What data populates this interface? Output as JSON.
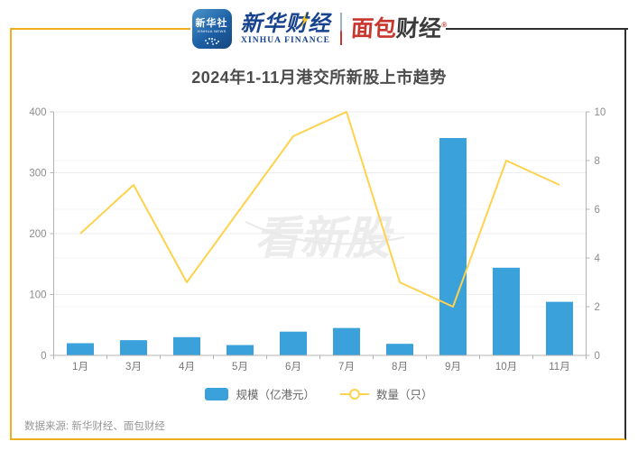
{
  "header": {
    "xinhua_news_icon": {
      "title": "新华社",
      "subtitle": "XINHUA NEWS"
    },
    "xinhua_finance": {
      "cn": "新华财经",
      "en": "XINHUA FINANCE"
    },
    "mianbao": {
      "cn_red": "面包",
      "cn_dark": "财经",
      "registered": "®"
    }
  },
  "chart_data": {
    "type": "bar+line",
    "title": "2024年1-11月港交所新股上市趋势",
    "categories": [
      "1月",
      "3月",
      "4月",
      "5月",
      "6月",
      "7月",
      "8月",
      "9月",
      "10月",
      "11月"
    ],
    "series": [
      {
        "name": "规模（亿港元）",
        "type": "bar",
        "axis": "left",
        "color": "#3aa1da",
        "values": [
          20,
          25,
          30,
          17,
          39,
          45,
          19,
          357,
          144,
          88
        ]
      },
      {
        "name": "数量（只）",
        "type": "line",
        "axis": "right",
        "color": "#ffd24d",
        "values": [
          5,
          7,
          3,
          6,
          9,
          10,
          3,
          2,
          8,
          7
        ]
      }
    ],
    "left_axis": {
      "min": 0,
      "max": 400,
      "ticks": [
        0,
        100,
        200,
        300,
        400
      ]
    },
    "right_axis": {
      "min": 0,
      "max": 10,
      "ticks": [
        0,
        2,
        4,
        6,
        8,
        10
      ]
    },
    "grid": true,
    "legend_position": "bottom"
  },
  "watermark": {
    "text": "看新股"
  },
  "footer": {
    "source": "数据来源: 新华财经、面包财经"
  },
  "colors": {
    "bar_blue": "#3aa1da",
    "line_yellow": "#ffd24d",
    "frame_yellow": "#f0ad1e",
    "frame_dark": "#2f2f2f",
    "xinhua_blue": "#16428e",
    "mianbao_red": "#c8372e",
    "title_gray": "#4c4c4c"
  }
}
